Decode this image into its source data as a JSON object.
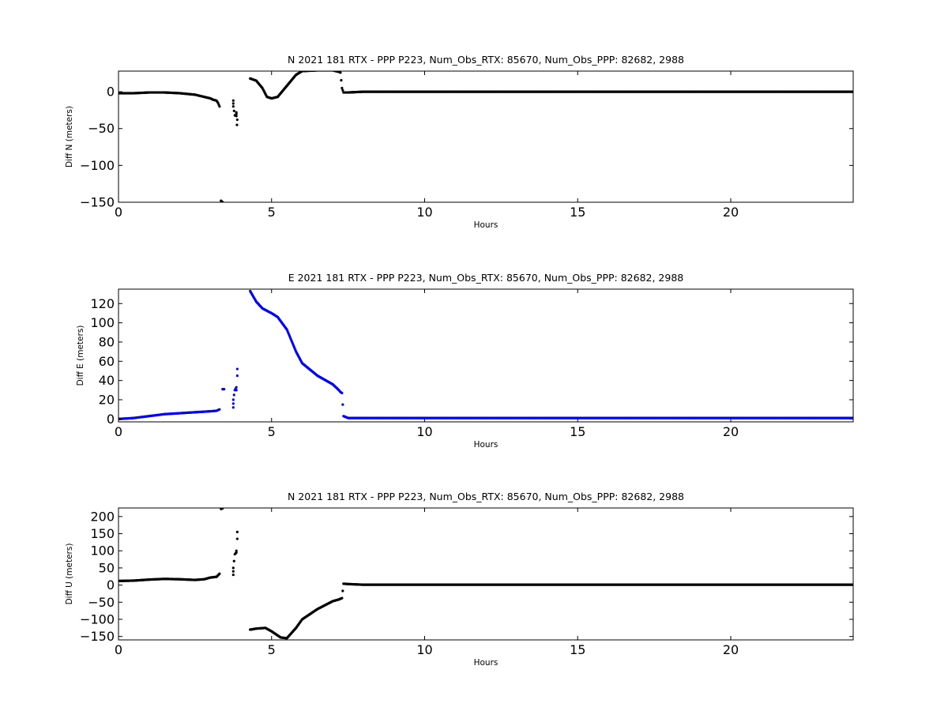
{
  "chart_data": [
    {
      "type": "scatter",
      "title": "N 2021 181 RTX - PPP  P223, Num_Obs_RTX: 85670, Num_Obs_PPP: 82682, 2988",
      "xlabel": "Hours",
      "ylabel": "Diff N (meters)",
      "xlim": [
        0,
        24
      ],
      "ylim": [
        -150,
        28
      ],
      "xticks": [
        0,
        5,
        10,
        15,
        20
      ],
      "yticks": [
        0,
        -50,
        -100,
        -150
      ],
      "color": "#000000",
      "series": [
        {
          "x": [
            0,
            0.5,
            1.0,
            1.5,
            2.0,
            2.5,
            2.8,
            3.0,
            3.1,
            3.2,
            3.25,
            3.3
          ],
          "y": [
            -2,
            -2,
            -1,
            -1,
            -2,
            -4,
            -7,
            -9,
            -11,
            -12,
            -15,
            -20
          ]
        },
        {
          "x": [
            3.35,
            3.4
          ],
          "y": [
            -148,
            -150
          ]
        },
        {
          "x": [
            3.75,
            3.75,
            3.75,
            3.8,
            3.85,
            3.85,
            3.85,
            3.87,
            3.88
          ],
          "y": [
            -12,
            -16,
            -20,
            -32,
            -33,
            -30,
            -28,
            -45,
            -38
          ]
        },
        {
          "x": [
            4.3,
            4.5,
            4.7,
            4.85,
            5.0,
            5.2,
            5.5,
            5.8,
            6.0,
            6.5,
            7.0,
            7.2,
            7.25,
            7.3,
            7.35,
            7.4,
            7.5,
            8,
            10,
            14,
            16,
            20,
            24
          ],
          "y": [
            18,
            15,
            5,
            -7,
            -9,
            -7,
            8,
            23,
            28,
            29,
            29,
            27,
            26,
            5,
            -1,
            -1,
            -1,
            0,
            0,
            0,
            0,
            0,
            0
          ]
        }
      ]
    },
    {
      "type": "scatter",
      "title": "E 2021 181 RTX - PPP  P223, Num_Obs_RTX: 85670, Num_Obs_PPP: 82682, 2988",
      "xlabel": "Hours",
      "ylabel": "Diff E (meters)",
      "xlim": [
        0,
        24
      ],
      "ylim": [
        -3,
        135
      ],
      "xticks": [
        0,
        5,
        10,
        15,
        20
      ],
      "yticks": [
        0,
        20,
        40,
        60,
        80,
        100,
        120
      ],
      "color": "#0000ff",
      "series": [
        {
          "x": [
            0,
            0.5,
            1.0,
            1.5,
            2.0,
            2.5,
            3.0,
            3.2,
            3.3
          ],
          "y": [
            0,
            1,
            3,
            5,
            6,
            7,
            8,
            8.5,
            10
          ]
        },
        {
          "x": [
            3.4,
            3.45
          ],
          "y": [
            31,
            31
          ]
        },
        {
          "x": [
            3.75,
            3.75,
            3.75,
            3.8,
            3.85,
            3.85,
            3.88,
            3.88
          ],
          "y": [
            12,
            16,
            20,
            30,
            33,
            30,
            52,
            45
          ]
        },
        {
          "x": [
            4.3,
            4.5,
            4.7,
            5.0,
            5.2,
            5.5,
            5.8,
            6.0,
            6.5,
            7.0,
            7.2,
            7.25,
            7.3,
            7.35,
            7.5,
            8,
            10,
            14,
            16,
            20,
            24
          ],
          "y": [
            133,
            122,
            115,
            110,
            106,
            93,
            70,
            58,
            45,
            36,
            30,
            28,
            27,
            3,
            1,
            1,
            1,
            1,
            1,
            1,
            1
          ]
        }
      ]
    },
    {
      "type": "scatter",
      "title": "N 2021 181 RTX - PPP  P223, Num_Obs_RTX: 85670, Num_Obs_PPP: 82682, 2988",
      "xlabel": "Hours",
      "ylabel": "Diff U (meters)",
      "xlim": [
        0,
        24
      ],
      "ylim": [
        -160,
        225
      ],
      "xticks": [
        0,
        5,
        10,
        15,
        20
      ],
      "yticks": [
        200,
        150,
        100,
        50,
        0,
        -50,
        -100,
        -150
      ],
      "color": "#000000",
      "series": [
        {
          "x": [
            0,
            0.5,
            1.0,
            1.5,
            2.0,
            2.5,
            2.8,
            3.0,
            3.2,
            3.3
          ],
          "y": [
            12,
            13,
            16,
            18,
            17,
            15,
            17,
            22,
            24,
            33
          ]
        },
        {
          "x": [
            3.35,
            3.4
          ],
          "y": [
            222,
            224
          ]
        },
        {
          "x": [
            3.75,
            3.75,
            3.75,
            3.8,
            3.85,
            3.85,
            3.88,
            3.88
          ],
          "y": [
            30,
            40,
            50,
            90,
            95,
            100,
            155,
            135
          ]
        },
        {
          "x": [
            4.3,
            4.5,
            4.8,
            5.0,
            5.3,
            5.5,
            5.8,
            6.0,
            6.5,
            7.0,
            7.2,
            7.25,
            7.3,
            7.35,
            7.5,
            8,
            10,
            14,
            16,
            20,
            24
          ],
          "y": [
            -130,
            -127,
            -125,
            -135,
            -153,
            -155,
            -125,
            -100,
            -70,
            -47,
            -42,
            -40,
            -38,
            4,
            3,
            1,
            1,
            1,
            1,
            1,
            1
          ]
        }
      ]
    }
  ]
}
